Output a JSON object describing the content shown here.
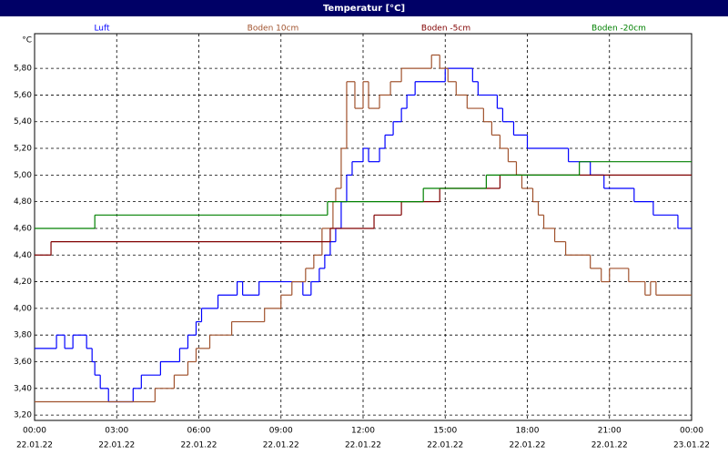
{
  "chart_data": {
    "type": "step",
    "title": "Temperatur [°C]",
    "y_unit": "°C",
    "grid": true,
    "xlim": [
      0,
      24
    ],
    "ylim": [
      3.16,
      6.06
    ],
    "xticks": [
      {
        "value": 0,
        "label": "00:00",
        "date": "22.01.22"
      },
      {
        "value": 3,
        "label": "03:00",
        "date": "22.01.22"
      },
      {
        "value": 6,
        "label": "06:00",
        "date": "22.01.22"
      },
      {
        "value": 9,
        "label": "09:00",
        "date": "22.01.22"
      },
      {
        "value": 12,
        "label": "12:00",
        "date": "22.01.22"
      },
      {
        "value": 15,
        "label": "15:00",
        "date": "22.01.22"
      },
      {
        "value": 18,
        "label": "18:00",
        "date": "22.01.22"
      },
      {
        "value": 21,
        "label": "21:00",
        "date": "22.01.22"
      },
      {
        "value": 24,
        "label": "00:00",
        "date": "23.01.22"
      }
    ],
    "yticks": [
      {
        "value": 3.2,
        "label": "3,20"
      },
      {
        "value": 3.4,
        "label": "3,40"
      },
      {
        "value": 3.6,
        "label": "3,60"
      },
      {
        "value": 3.8,
        "label": "3,80"
      },
      {
        "value": 4.0,
        "label": "4,00"
      },
      {
        "value": 4.2,
        "label": "4,20"
      },
      {
        "value": 4.4,
        "label": "4,40"
      },
      {
        "value": 4.6,
        "label": "4,60"
      },
      {
        "value": 4.8,
        "label": "4,80"
      },
      {
        "value": 5.0,
        "label": "5,00"
      },
      {
        "value": 5.2,
        "label": "5,20"
      },
      {
        "value": 5.4,
        "label": "5,40"
      },
      {
        "value": 5.6,
        "label": "5,60"
      },
      {
        "value": 5.8,
        "label": "5,80"
      }
    ],
    "series": [
      {
        "name": "Luft",
        "color": "#0000ff",
        "x": [
          0,
          0.8,
          1.1,
          1.4,
          1.9,
          2.1,
          2.2,
          2.4,
          2.7,
          3.6,
          3.9,
          4.6,
          5.3,
          5.6,
          5.9,
          6.1,
          6.7,
          7.4,
          7.6,
          8.2,
          9.8,
          10.1,
          10.4,
          10.6,
          10.8,
          11.0,
          11.2,
          11.4,
          11.6,
          12.0,
          12.2,
          12.6,
          12.8,
          13.1,
          13.4,
          13.6,
          13.9,
          15.0,
          16.0,
          16.2,
          16.9,
          17.1,
          17.5,
          18.0,
          19.5,
          20.3,
          20.8,
          21.9,
          22.6,
          23.5
        ],
        "values": [
          3.7,
          3.8,
          3.7,
          3.8,
          3.7,
          3.6,
          3.5,
          3.4,
          3.3,
          3.4,
          3.5,
          3.6,
          3.7,
          3.8,
          3.9,
          4.0,
          4.1,
          4.2,
          4.1,
          4.2,
          4.1,
          4.2,
          4.3,
          4.4,
          4.5,
          4.6,
          4.8,
          5.0,
          5.1,
          5.2,
          5.1,
          5.2,
          5.3,
          5.4,
          5.5,
          5.6,
          5.7,
          5.8,
          5.7,
          5.6,
          5.5,
          5.4,
          5.3,
          5.2,
          5.1,
          5.0,
          4.9,
          4.8,
          4.7,
          4.6
        ]
      },
      {
        "name": "Boden 10cm",
        "color": "#a0522d",
        "x": [
          0,
          4.4,
          5.1,
          5.6,
          5.9,
          6.4,
          7.2,
          8.4,
          9.0,
          9.4,
          9.9,
          10.2,
          10.5,
          10.9,
          11.0,
          11.2,
          11.4,
          11.7,
          12.0,
          12.2,
          12.6,
          13.0,
          13.4,
          14.5,
          14.8,
          15.1,
          15.4,
          15.8,
          16.4,
          16.7,
          17.0,
          17.3,
          17.6,
          17.8,
          18.2,
          18.4,
          18.6,
          19.0,
          19.4,
          20.3,
          20.7,
          21.0,
          21.7,
          22.3,
          22.5,
          22.7
        ],
        "values": [
          3.3,
          3.4,
          3.5,
          3.6,
          3.7,
          3.8,
          3.9,
          4.0,
          4.1,
          4.2,
          4.3,
          4.4,
          4.6,
          4.8,
          4.9,
          5.2,
          5.7,
          5.5,
          5.7,
          5.5,
          5.6,
          5.7,
          5.8,
          5.9,
          5.8,
          5.7,
          5.6,
          5.5,
          5.4,
          5.3,
          5.2,
          5.1,
          5.0,
          4.9,
          4.8,
          4.7,
          4.6,
          4.5,
          4.4,
          4.3,
          4.2,
          4.3,
          4.2,
          4.1,
          4.2,
          4.1
        ]
      },
      {
        "name": "Boden -5cm",
        "color": "#800000",
        "x": [
          0,
          0.6,
          10.8,
          12.4,
          13.4,
          14.8,
          17.0
        ],
        "values": [
          4.4,
          4.5,
          4.6,
          4.7,
          4.8,
          4.9,
          5.0
        ]
      },
      {
        "name": "Boden -20cm",
        "color": "#008000",
        "x": [
          0,
          2.2,
          10.7,
          14.2,
          16.5,
          19.9
        ],
        "values": [
          4.6,
          4.7,
          4.8,
          4.9,
          5.0,
          5.1
        ]
      }
    ]
  }
}
